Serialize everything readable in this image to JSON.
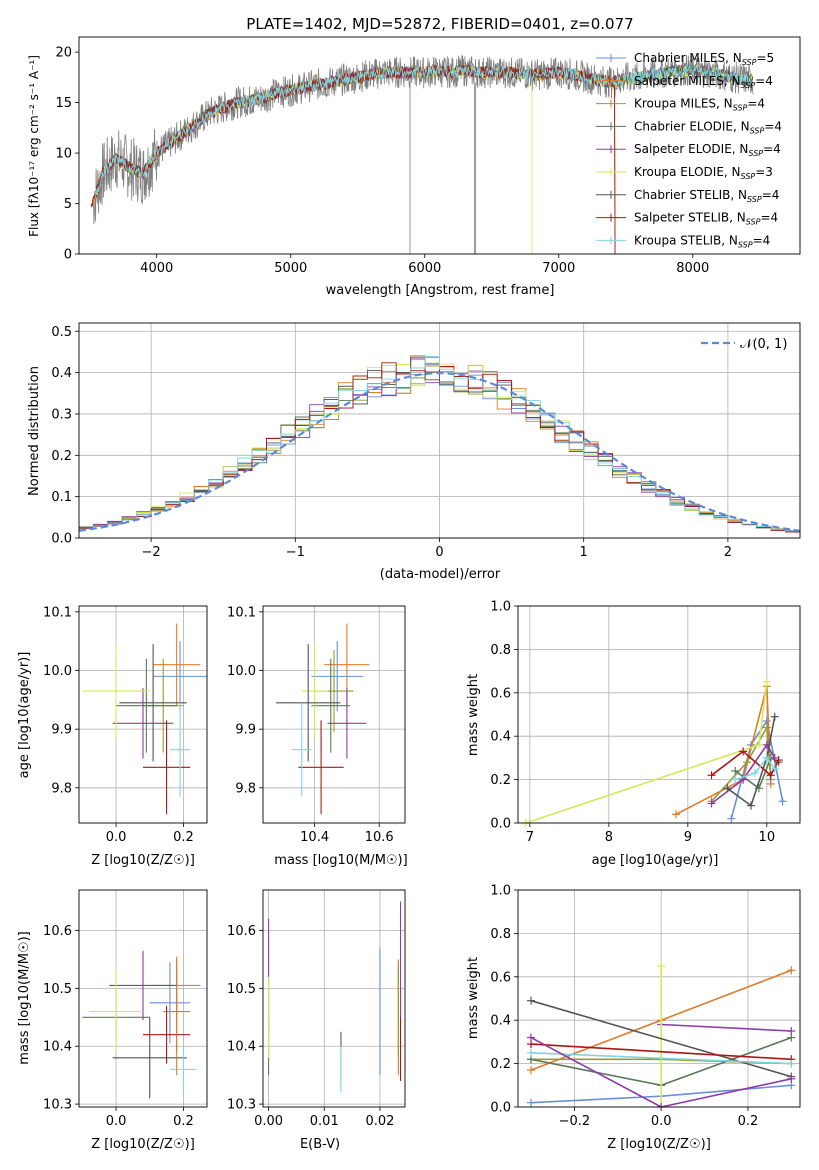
{
  "series_styles": [
    {
      "name": "Chabrier MILES, N_SSP=5",
      "color": "#6a8fd8"
    },
    {
      "name": "Salpeter MILES, N_SSP=4",
      "color": "#e07b2a"
    },
    {
      "name": "Kroupa MILES, N_SSP=4",
      "color": "#9a9a30"
    },
    {
      "name": "Chabrier ELODIE, N_SSP=4",
      "color": "#5b7a5b"
    },
    {
      "name": "Salpeter ELODIE, N_SSP=4",
      "color": "#8e3ba6"
    },
    {
      "name": "Kroupa ELODIE, N_SSP=3",
      "color": "#d4e85a"
    },
    {
      "name": "Chabrier STELIB, N_SSP=4",
      "color": "#555555"
    },
    {
      "name": "Salpeter STELIB, N_SSP=4",
      "color": "#a81818"
    },
    {
      "name": "Kroupa STELIB, N_SSP=4",
      "color": "#7fd6e0"
    }
  ],
  "chart_data": [
    {
      "id": "spectrum",
      "type": "line",
      "title": "PLATE=1402, MJD=52872, FIBERID=0401, z=0.077",
      "xlabel": "wavelength [Angstrom, rest frame]",
      "ylabel": "Flux [fλ10⁻¹⁷ erg cm⁻² s⁻¹ A⁻¹]",
      "xlim": [
        3420,
        8800
      ],
      "ylim": [
        0,
        21.5
      ],
      "xticks": [
        4000,
        5000,
        6000,
        7000,
        8000
      ],
      "yticks": [
        0,
        5,
        10,
        15,
        20
      ],
      "legend_pos": "top-right",
      "legend": [
        "Chabrier MILES, N_SSP=5",
        "Salpeter MILES, N_SSP=4",
        "Kroupa MILES, N_SSP=4",
        "Chabrier ELODIE, N_SSP=4",
        "Salpeter ELODIE, N_SSP=4",
        "Kroupa ELODIE, N_SSP=3",
        "Chabrier STELIB, N_SSP=4",
        "Salpeter STELIB, N_SSP=4",
        "Kroupa STELIB, N_SSP=4"
      ],
      "data_curve_x": [
        3520,
        3600,
        3700,
        3800,
        3900,
        4000,
        4100,
        4200,
        4300,
        4400,
        4500,
        4600,
        4700,
        4800,
        4900,
        5000,
        5100,
        5200,
        5300,
        5400,
        5500,
        5600,
        5700,
        5800,
        5900,
        6000,
        6100,
        6200,
        6300,
        6400,
        6500,
        6600,
        6700,
        6800,
        6900,
        7000,
        7100,
        7200,
        7300,
        7400,
        7500,
        7600,
        7700,
        7800,
        7900,
        8000,
        8100,
        8200,
        8300,
        8400,
        8450
      ],
      "data_curve_y": [
        5,
        8,
        9.5,
        8.5,
        8,
        10,
        11,
        12,
        13,
        14,
        14.5,
        15,
        15.2,
        15.5,
        16,
        16.2,
        16.5,
        16.8,
        17,
        17.3,
        17.5,
        17.8,
        18,
        18,
        18,
        18,
        18.1,
        18,
        18.2,
        18,
        18,
        18,
        17.9,
        17.8,
        17.8,
        18,
        17.8,
        17.5,
        17.2,
        17,
        17.4,
        17.5,
        17.8,
        18,
        18.2,
        18.2,
        18,
        17.8,
        17.5,
        17.3,
        17.2
      ]
    },
    {
      "id": "residuals",
      "type": "line",
      "xlabel": "(data-model)/error",
      "ylabel": "Normed distribution",
      "xlim": [
        -2.5,
        2.5
      ],
      "ylim": [
        0,
        0.52
      ],
      "xticks": [
        -2,
        -1,
        0,
        1,
        2
      ],
      "yticks": [
        0.0,
        0.1,
        0.2,
        0.3,
        0.4,
        0.5
      ],
      "legend_pos": "top-right",
      "legend": [
        "𝒩(0, 1)"
      ],
      "grid": true,
      "curve": "standard normal N(0,1), histograms of 9 fits"
    },
    {
      "id": "age-Z",
      "type": "scatter",
      "xlabel": "Z [log10(Z/Z☉)]",
      "ylabel": "age [log10(age/yr)]",
      "xlim": [
        -0.11,
        0.27
      ],
      "ylim": [
        9.74,
        10.11
      ],
      "xticks": [
        0.0,
        0.2
      ],
      "yticks": [
        9.8,
        9.9,
        10.0,
        10.1
      ],
      "grid": true,
      "points": [
        {
          "series": 0,
          "x": 0.19,
          "y": 9.99,
          "xerr": 0.08,
          "yerr": 0.06
        },
        {
          "series": 1,
          "x": 0.18,
          "y": 10.01,
          "xerr": 0.07,
          "yerr": 0.07
        },
        {
          "series": 2,
          "x": 0.14,
          "y": 9.94,
          "xerr": 0.06,
          "yerr": 0.08
        },
        {
          "series": 3,
          "x": 0.09,
          "y": 9.94,
          "xerr": 0.09,
          "yerr": 0.08
        },
        {
          "series": 4,
          "x": 0.08,
          "y": 9.91,
          "xerr": 0.09,
          "yerr": 0.06
        },
        {
          "series": 5,
          "x": 0.0,
          "y": 9.965,
          "xerr": 0.1,
          "yerr": 0.08
        },
        {
          "series": 6,
          "x": 0.11,
          "y": 9.945,
          "xerr": 0.1,
          "yerr": 0.1
        },
        {
          "series": 7,
          "x": 0.15,
          "y": 9.835,
          "xerr": 0.07,
          "yerr": 0.08
        },
        {
          "series": 8,
          "x": 0.19,
          "y": 9.865,
          "xerr": 0.03,
          "yerr": 0.08
        }
      ]
    },
    {
      "id": "age-mass",
      "type": "scatter",
      "xlabel": "mass [log10(M/M☉)]",
      "xlim": [
        10.24,
        10.68
      ],
      "ylim": [
        9.74,
        10.11
      ],
      "xticks": [
        10.4,
        10.6
      ],
      "yticks": [
        9.8,
        9.9,
        10.0,
        10.1
      ],
      "grid": true,
      "points": [
        {
          "series": 0,
          "x": 10.47,
          "y": 9.99,
          "xerr": 0.08,
          "yerr": 0.06
        },
        {
          "series": 1,
          "x": 10.5,
          "y": 10.01,
          "xerr": 0.07,
          "yerr": 0.07
        },
        {
          "series": 2,
          "x": 10.46,
          "y": 9.965,
          "xerr": 0.06,
          "yerr": 0.07
        },
        {
          "series": 3,
          "x": 10.45,
          "y": 9.94,
          "xerr": 0.06,
          "yerr": 0.08
        },
        {
          "series": 4,
          "x": 10.5,
          "y": 9.91,
          "xerr": 0.06,
          "yerr": 0.06
        },
        {
          "series": 5,
          "x": 10.4,
          "y": 9.965,
          "xerr": 0.04,
          "yerr": 0.08
        },
        {
          "series": 6,
          "x": 10.38,
          "y": 9.945,
          "xerr": 0.1,
          "yerr": 0.1
        },
        {
          "series": 7,
          "x": 10.42,
          "y": 9.835,
          "xerr": 0.07,
          "yerr": 0.08
        },
        {
          "series": 8,
          "x": 10.36,
          "y": 9.865,
          "xerr": 0.03,
          "yerr": 0.08
        }
      ]
    },
    {
      "id": "weight-age",
      "type": "line",
      "xlabel": "age [log10(age/yr)]",
      "ylabel": "mass weight",
      "xlim": [
        6.85,
        10.42
      ],
      "ylim": [
        0,
        1.0
      ],
      "xticks": [
        7,
        8,
        9,
        10
      ],
      "yticks": [
        0.0,
        0.2,
        0.4,
        0.6,
        0.8,
        1.0
      ],
      "grid": true,
      "lines": [
        {
          "series": 0,
          "x": [
            9.55,
            9.8,
            10.0,
            10.2
          ],
          "y": [
            0.02,
            0.36,
            0.47,
            0.1
          ]
        },
        {
          "series": 1,
          "x": [
            8.85,
            9.7,
            10.0,
            10.05
          ],
          "y": [
            0.04,
            0.2,
            0.63,
            0.18
          ]
        },
        {
          "series": 2,
          "x": [
            9.3,
            9.75,
            10.0,
            10.05
          ],
          "y": [
            0.1,
            0.28,
            0.44,
            0.2
          ]
        },
        {
          "series": 3,
          "x": [
            9.6,
            9.9,
            10.05,
            10.15
          ],
          "y": [
            0.24,
            0.16,
            0.3,
            0.28
          ]
        },
        {
          "series": 4,
          "x": [
            9.3,
            9.7,
            10.0,
            10.1
          ],
          "y": [
            0.09,
            0.2,
            0.36,
            0.3
          ]
        },
        {
          "series": 5,
          "x": [
            6.95,
            9.9,
            10.0
          ],
          "y": [
            0.0,
            0.36,
            0.65
          ]
        },
        {
          "series": 6,
          "x": [
            9.5,
            9.8,
            10.0,
            10.1
          ],
          "y": [
            0.16,
            0.08,
            0.3,
            0.49
          ]
        },
        {
          "series": 7,
          "x": [
            9.3,
            9.7,
            10.05,
            10.15
          ],
          "y": [
            0.22,
            0.33,
            0.22,
            0.29
          ]
        },
        {
          "series": 8,
          "x": [
            9.6,
            9.85,
            10.0,
            10.1
          ],
          "y": [
            0.2,
            0.23,
            0.3,
            0.25
          ]
        }
      ]
    },
    {
      "id": "mass-Z",
      "type": "scatter",
      "xlabel": "Z [log10(Z/Z☉)]",
      "ylabel": "mass [log10(M/M☉)]",
      "xlim": [
        -0.11,
        0.27
      ],
      "ylim": [
        10.295,
        10.67
      ],
      "xticks": [
        0.0,
        0.2
      ],
      "yticks": [
        10.3,
        10.4,
        10.5,
        10.6
      ],
      "grid": true,
      "points": [
        {
          "series": 0,
          "x": 0.16,
          "y": 10.475,
          "xerr": 0.06,
          "yerr": 0.07
        },
        {
          "series": 1,
          "x": 0.18,
          "y": 10.505,
          "xerr": 0.07,
          "yerr": 0.05
        },
        {
          "series": 2,
          "x": 0.18,
          "y": 10.46,
          "xerr": 0.04,
          "yerr": 0.07
        },
        {
          "series": 3,
          "x": 0.0,
          "y": 10.45,
          "xerr": 0.1,
          "yerr": 0.05
        },
        {
          "series": 4,
          "x": 0.08,
          "y": 10.505,
          "xerr": 0.1,
          "yerr": 0.06
        },
        {
          "series": 5,
          "x": 0.0,
          "y": 10.46,
          "xerr": 0.08,
          "yerr": 0.07
        },
        {
          "series": 6,
          "x": 0.1,
          "y": 10.38,
          "xerr": 0.11,
          "yerr": 0.07
        },
        {
          "series": 7,
          "x": 0.15,
          "y": 10.42,
          "xerr": 0.07,
          "yerr": 0.05
        },
        {
          "series": 8,
          "x": 0.2,
          "y": 10.36,
          "xerr": 0.04,
          "yerr": 0.04
        },
        {
          "series": 1,
          "x": 0.18,
          "y": 10.45,
          "xerr": 0.0,
          "yerr": 0.1
        }
      ]
    },
    {
      "id": "mass-EBV",
      "type": "scatter",
      "xlabel": "E(B-V)",
      "xlim": [
        -0.001,
        0.0245
      ],
      "ylim": [
        10.295,
        10.67
      ],
      "xticks": [
        0.0,
        0.01,
        0.02
      ],
      "yticks": [
        10.3,
        10.4,
        10.5,
        10.6
      ],
      "grid": true,
      "points": [
        {
          "series": 0,
          "x": 0.02,
          "y": 10.46,
          "xerr": 0,
          "yerr": 0.11
        },
        {
          "series": 1,
          "x": 0.0233,
          "y": 10.45,
          "xerr": 0,
          "yerr": 0.1
        },
        {
          "series": 2,
          "x": 0.0233,
          "y": 10.46,
          "xerr": 0,
          "yerr": 0.08
        },
        {
          "series": 3,
          "x": 0.0,
          "y": 10.4,
          "xerr": 0,
          "yerr": 0.05
        },
        {
          "series": 4,
          "x": 0.0,
          "y": 10.52,
          "xerr": 0,
          "yerr": 0.1
        },
        {
          "series": 5,
          "x": 0.0,
          "y": 10.45,
          "xerr": 0,
          "yerr": 0.07
        },
        {
          "series": 6,
          "x": 0.013,
          "y": 10.38,
          "xerr": 0,
          "yerr": 0.045
        },
        {
          "series": 7,
          "x": 0.0237,
          "y": 10.42,
          "xerr": 0,
          "yerr": 0.08
        },
        {
          "series": 8,
          "x": 0.013,
          "y": 10.36,
          "xerr": 0,
          "yerr": 0.04
        },
        {
          "series": 4,
          "x": 0.0237,
          "y": 10.55,
          "xerr": 0,
          "yerr": 0.1
        }
      ]
    },
    {
      "id": "weight-Z",
      "type": "line",
      "xlabel": "Z [log10(Z/Z☉)]",
      "ylabel": "mass weight",
      "xlim": [
        -0.33,
        0.32
      ],
      "ylim": [
        0,
        1.0
      ],
      "xticks": [
        -0.2,
        0.0,
        0.2
      ],
      "yticks": [
        0.0,
        0.2,
        0.4,
        0.6,
        0.8,
        1.0
      ],
      "grid": true,
      "lines": [
        {
          "series": 0,
          "x": [
            -0.3,
            0.0,
            0.3
          ],
          "y": [
            0.02,
            0.05,
            0.1
          ]
        },
        {
          "series": 1,
          "x": [
            -0.3,
            0.0,
            0.3
          ],
          "y": [
            0.17,
            0.4,
            0.63
          ]
        },
        {
          "series": 2,
          "x": [
            -0.3,
            0.0,
            0.3
          ],
          "y": [
            0.22,
            0.22,
            0.2
          ]
        },
        {
          "series": 3,
          "x": [
            -0.3,
            0.0,
            0.3
          ],
          "y": [
            0.22,
            0.1,
            0.32
          ]
        },
        {
          "series": 4,
          "x": [
            0.0,
            0.3
          ],
          "y": [
            0.38,
            0.35
          ]
        },
        {
          "series": 5,
          "x": [
            0.0,
            0.0
          ],
          "y": [
            0.0,
            0.65
          ]
        },
        {
          "series": 6,
          "x": [
            -0.3,
            0.3
          ],
          "y": [
            0.49,
            0.14
          ]
        },
        {
          "series": 7,
          "x": [
            -0.3,
            0.3
          ],
          "y": [
            0.29,
            0.22
          ]
        },
        {
          "series": 8,
          "x": [
            -0.3,
            0.3
          ],
          "y": [
            0.25,
            0.2
          ]
        },
        {
          "series": 4,
          "x": [
            -0.3,
            0.0,
            0.3
          ],
          "y": [
            0.32,
            0.0,
            0.13
          ]
        }
      ]
    }
  ]
}
